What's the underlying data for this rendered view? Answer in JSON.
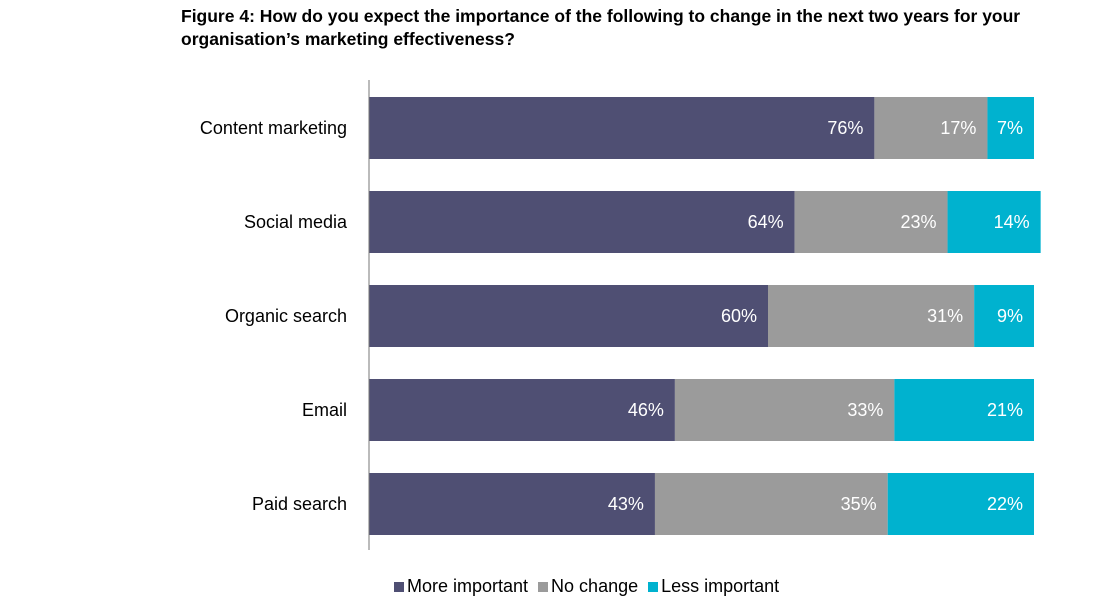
{
  "chart_data": {
    "type": "bar",
    "orientation": "horizontal",
    "stacked": true,
    "title": "Figure 4: How do you expect the importance of the following to change in the next two years for your organisation’s marketing effectiveness?",
    "categories": [
      "Content marketing",
      "Social media",
      "Organic search",
      "Email",
      "Paid search"
    ],
    "series": [
      {
        "name": "More important",
        "values": [
          76,
          64,
          60,
          46,
          43
        ],
        "labels": [
          "76%",
          "64%",
          "60%",
          "46%",
          "43%"
        ],
        "color": "#4f4f73"
      },
      {
        "name": "No change",
        "values": [
          17,
          23,
          31,
          33,
          35
        ],
        "labels": [
          "17%",
          "23%",
          "31%",
          "33%",
          "35%"
        ],
        "color": "#9b9b9b"
      },
      {
        "name": "Less important",
        "values": [
          7,
          14,
          9,
          21,
          22
        ],
        "labels": [
          "7%",
          "14%",
          "9%",
          "21%",
          "22%"
        ],
        "color": "#00b2cf"
      }
    ],
    "xlim": [
      0,
      100
    ],
    "grid": false,
    "legend_position": "bottom"
  }
}
